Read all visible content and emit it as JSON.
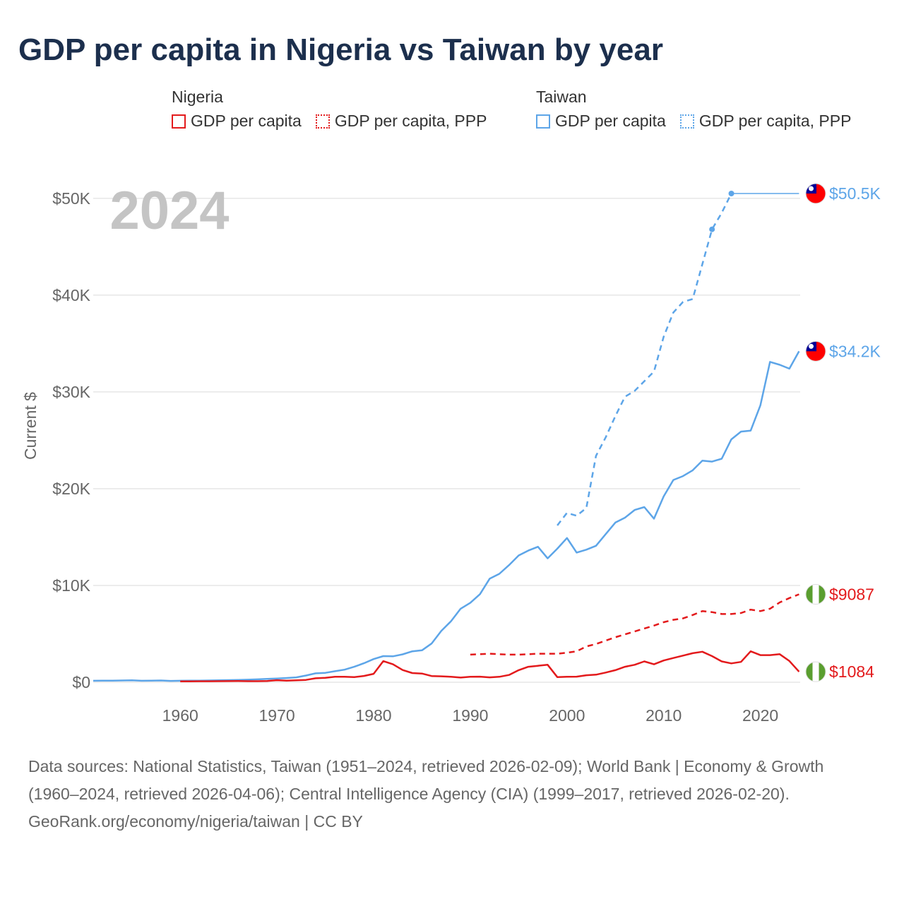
{
  "title": "GDP per capita in Nigeria vs Taiwan by year",
  "legend": {
    "groups": [
      {
        "name": "Nigeria",
        "color": "#e31a1c",
        "items": [
          {
            "label": "GDP per capita",
            "style": "solid"
          },
          {
            "label": "GDP per capita, PPP",
            "style": "dotted"
          }
        ]
      },
      {
        "name": "Taiwan",
        "color": "#5da5e8",
        "items": [
          {
            "label": "GDP per capita",
            "style": "solid"
          },
          {
            "label": "GDP per capita, PPP",
            "style": "dotted"
          }
        ]
      }
    ]
  },
  "year_watermark": "2024",
  "chart_data": {
    "type": "line",
    "title": "GDP per capita in Nigeria vs Taiwan by year",
    "xlabel": "",
    "ylabel": "Current $",
    "xlim": [
      1951,
      2024
    ],
    "ylim": [
      0,
      52000
    ],
    "xticks": [
      1960,
      1970,
      1980,
      1990,
      2000,
      2010,
      2020
    ],
    "xtick_labels": [
      "1960",
      "1970",
      "1980",
      "1990",
      "2000",
      "2010",
      "2020"
    ],
    "yticks": [
      0,
      10000,
      20000,
      30000,
      40000,
      50000
    ],
    "ytick_labels": [
      "$0",
      "$10K",
      "$20K",
      "$30K",
      "$40K",
      "$50K"
    ],
    "grid": true,
    "series": [
      {
        "name": "Taiwan GDP per capita, PPP",
        "country": "Taiwan",
        "color": "#5da5e8",
        "dash": "dashed",
        "extend_to": 2024,
        "end_label": "$50.5K",
        "markers": [
          2015,
          2017
        ],
        "x": [
          1999,
          2000,
          2001,
          2002,
          2003,
          2004,
          2005,
          2006,
          2007,
          2008,
          2009,
          2010,
          2011,
          2012,
          2013,
          2014,
          2015,
          2016,
          2017
        ],
        "y": [
          16200,
          17500,
          17200,
          18000,
          23400,
          25300,
          27500,
          29500,
          30100,
          31100,
          32100,
          35700,
          38200,
          39300,
          39600,
          43200,
          46800,
          48500,
          50500
        ]
      },
      {
        "name": "Taiwan GDP per capita",
        "country": "Taiwan",
        "color": "#5da5e8",
        "dash": "solid",
        "end_label": "$34.2K",
        "x": [
          1951,
          1952,
          1953,
          1954,
          1955,
          1956,
          1957,
          1958,
          1959,
          1960,
          1961,
          1962,
          1963,
          1964,
          1965,
          1966,
          1967,
          1968,
          1969,
          1970,
          1971,
          1972,
          1973,
          1974,
          1975,
          1976,
          1977,
          1978,
          1979,
          1980,
          1981,
          1982,
          1983,
          1984,
          1985,
          1986,
          1987,
          1988,
          1989,
          1990,
          1991,
          1992,
          1993,
          1994,
          1995,
          1996,
          1997,
          1998,
          1999,
          2000,
          2001,
          2002,
          2003,
          2004,
          2005,
          2006,
          2007,
          2008,
          2009,
          2010,
          2011,
          2012,
          2013,
          2014,
          2015,
          2016,
          2017,
          2018,
          2019,
          2020,
          2021,
          2022,
          2023,
          2024
        ],
        "y": [
          150,
          170,
          170,
          180,
          200,
          150,
          170,
          180,
          140,
          150,
          160,
          170,
          180,
          200,
          220,
          240,
          260,
          300,
          340,
          390,
          440,
          500,
          690,
          920,
          970,
          1140,
          1300,
          1600,
          1960,
          2390,
          2700,
          2680,
          2880,
          3200,
          3300,
          4000,
          5300,
          6300,
          7600,
          8200,
          9100,
          10700,
          11200,
          12100,
          13100,
          13600,
          14000,
          12800,
          13800,
          14900,
          13400,
          13700,
          14100,
          15300,
          16500,
          17000,
          17800,
          18100,
          16900,
          19200,
          20900,
          21300,
          21900,
          22900,
          22800,
          23100,
          25100,
          25900,
          26000,
          28600,
          33100,
          32800,
          32400,
          34200
        ]
      },
      {
        "name": "Nigeria GDP per capita, PPP",
        "country": "Nigeria",
        "color": "#e31a1c",
        "dash": "dashed",
        "end_label": "$9087",
        "x": [
          1990,
          1991,
          1992,
          1993,
          1994,
          1995,
          1996,
          1997,
          1998,
          1999,
          2000,
          2001,
          2002,
          2003,
          2004,
          2005,
          2006,
          2007,
          2008,
          2009,
          2010,
          2011,
          2012,
          2013,
          2014,
          2015,
          2016,
          2017,
          2018,
          2019,
          2020,
          2021,
          2022,
          2023,
          2024
        ],
        "y": [
          2850,
          2900,
          2950,
          2900,
          2850,
          2850,
          2900,
          2950,
          2950,
          2950,
          3050,
          3200,
          3700,
          3950,
          4300,
          4650,
          4950,
          5250,
          5550,
          5850,
          6200,
          6450,
          6600,
          6950,
          7350,
          7250,
          7050,
          7050,
          7150,
          7500,
          7350,
          7600,
          8250,
          8700,
          9087
        ]
      },
      {
        "name": "Nigeria GDP per capita",
        "country": "Nigeria",
        "color": "#e31a1c",
        "dash": "solid",
        "end_label": "$1084",
        "x": [
          1960,
          1961,
          1962,
          1963,
          1964,
          1965,
          1966,
          1967,
          1968,
          1969,
          1970,
          1971,
          1972,
          1973,
          1974,
          1975,
          1976,
          1977,
          1978,
          1979,
          1980,
          1981,
          1982,
          1983,
          1984,
          1985,
          1986,
          1987,
          1988,
          1989,
          1990,
          1991,
          1992,
          1993,
          1994,
          1995,
          1996,
          1997,
          1998,
          1999,
          2000,
          2001,
          2002,
          2003,
          2004,
          2005,
          2006,
          2007,
          2008,
          2009,
          2010,
          2011,
          2012,
          2013,
          2014,
          2015,
          2016,
          2017,
          2018,
          2019,
          2020,
          2021,
          2022,
          2023,
          2024
        ],
        "y": [
          90,
          95,
          100,
          105,
          110,
          120,
          125,
          110,
          110,
          130,
          210,
          170,
          200,
          240,
          410,
          450,
          560,
          560,
          530,
          650,
          870,
          2180,
          1850,
          1260,
          950,
          900,
          640,
          610,
          560,
          480,
          560,
          580,
          500,
          560,
          750,
          1250,
          1600,
          1700,
          1800,
          530,
          570,
          580,
          720,
          780,
          1000,
          1250,
          1600,
          1800,
          2150,
          1850,
          2250,
          2500,
          2750,
          3000,
          3150,
          2700,
          2150,
          1950,
          2100,
          3200,
          2800,
          2800,
          2900,
          2200,
          1084
        ]
      }
    ]
  },
  "footer": {
    "sources": "Data sources: National Statistics, Taiwan (1951–2024, retrieved 2026-02-09); World Bank | Economy & Growth (1960–2024, retrieved 2026-04-06); Central Intelligence Agency (CIA) (1999–2017, retrieved 2026-02-20).",
    "credit": "GeoRank.org/economy/nigeria/taiwan | CC BY"
  }
}
